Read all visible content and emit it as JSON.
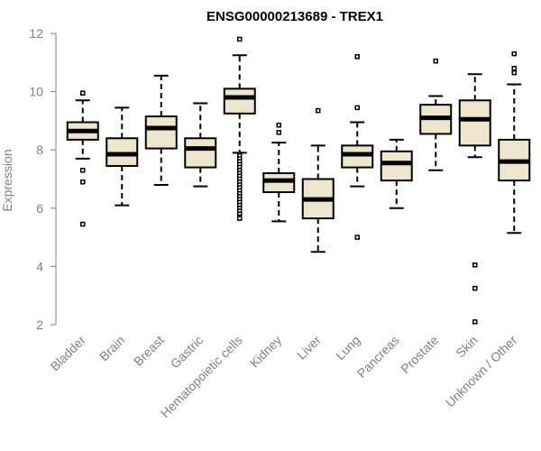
{
  "chart_data": {
    "type": "boxplot",
    "title": "ENSG00000213689 - TREX1",
    "xlabel": "",
    "ylabel": "Expression",
    "ylim": [
      2,
      12
    ],
    "yticks": [
      2,
      4,
      6,
      8,
      10,
      12
    ],
    "box_fill": "#ede6cd",
    "categories": [
      {
        "name": "Bladder",
        "whisker_low": 7.7,
        "q1": 8.35,
        "median": 8.65,
        "q3": 8.95,
        "whisker_high": 9.7,
        "outliers": [
          9.95,
          7.3,
          6.9,
          5.45
        ]
      },
      {
        "name": "Brain",
        "whisker_low": 6.1,
        "q1": 7.45,
        "median": 7.85,
        "q3": 8.4,
        "whisker_high": 9.45,
        "outliers": []
      },
      {
        "name": "Breast",
        "whisker_low": 6.8,
        "q1": 8.05,
        "median": 8.75,
        "q3": 9.15,
        "whisker_high": 10.55,
        "outliers": []
      },
      {
        "name": "Gastric",
        "whisker_low": 6.75,
        "q1": 7.4,
        "median": 8.05,
        "q3": 8.4,
        "whisker_high": 9.6,
        "outliers": []
      },
      {
        "name": "Hematopoietic cells",
        "whisker_low": 7.9,
        "q1": 9.25,
        "median": 9.8,
        "q3": 10.1,
        "whisker_high": 11.25,
        "outliers": [
          11.8,
          7.85,
          7.8,
          7.7,
          7.6,
          7.5,
          7.4,
          7.3,
          7.2,
          7.1,
          7.0,
          6.9,
          6.8,
          6.7,
          6.6,
          6.5,
          6.4,
          6.3,
          6.2,
          6.1,
          6.0,
          5.9,
          5.8,
          5.7,
          5.65
        ]
      },
      {
        "name": "Kidney",
        "whisker_low": 5.55,
        "q1": 6.55,
        "median": 6.95,
        "q3": 7.2,
        "whisker_high": 8.25,
        "outliers": [
          8.85,
          8.6
        ]
      },
      {
        "name": "Liver",
        "whisker_low": 4.5,
        "q1": 5.65,
        "median": 6.3,
        "q3": 7.0,
        "whisker_high": 8.15,
        "outliers": [
          9.35
        ]
      },
      {
        "name": "Lung",
        "whisker_low": 6.75,
        "q1": 7.4,
        "median": 7.85,
        "q3": 8.15,
        "whisker_high": 8.95,
        "outliers": [
          11.2,
          9.45,
          5.0
        ]
      },
      {
        "name": "Pancreas",
        "whisker_low": 6.0,
        "q1": 6.95,
        "median": 7.55,
        "q3": 7.95,
        "whisker_high": 8.35,
        "outliers": []
      },
      {
        "name": "Prostate",
        "whisker_low": 7.3,
        "q1": 8.55,
        "median": 9.1,
        "q3": 9.55,
        "whisker_high": 9.85,
        "outliers": [
          11.05
        ]
      },
      {
        "name": "Skin",
        "whisker_low": 7.75,
        "q1": 8.15,
        "median": 9.05,
        "q3": 9.7,
        "whisker_high": 10.6,
        "outliers": [
          4.05,
          3.25,
          2.1
        ]
      },
      {
        "name": "Unknown / Other",
        "whisker_low": 5.15,
        "q1": 6.95,
        "median": 7.6,
        "q3": 8.35,
        "whisker_high": 10.25,
        "outliers": [
          11.3,
          10.8,
          10.65
        ]
      }
    ]
  }
}
